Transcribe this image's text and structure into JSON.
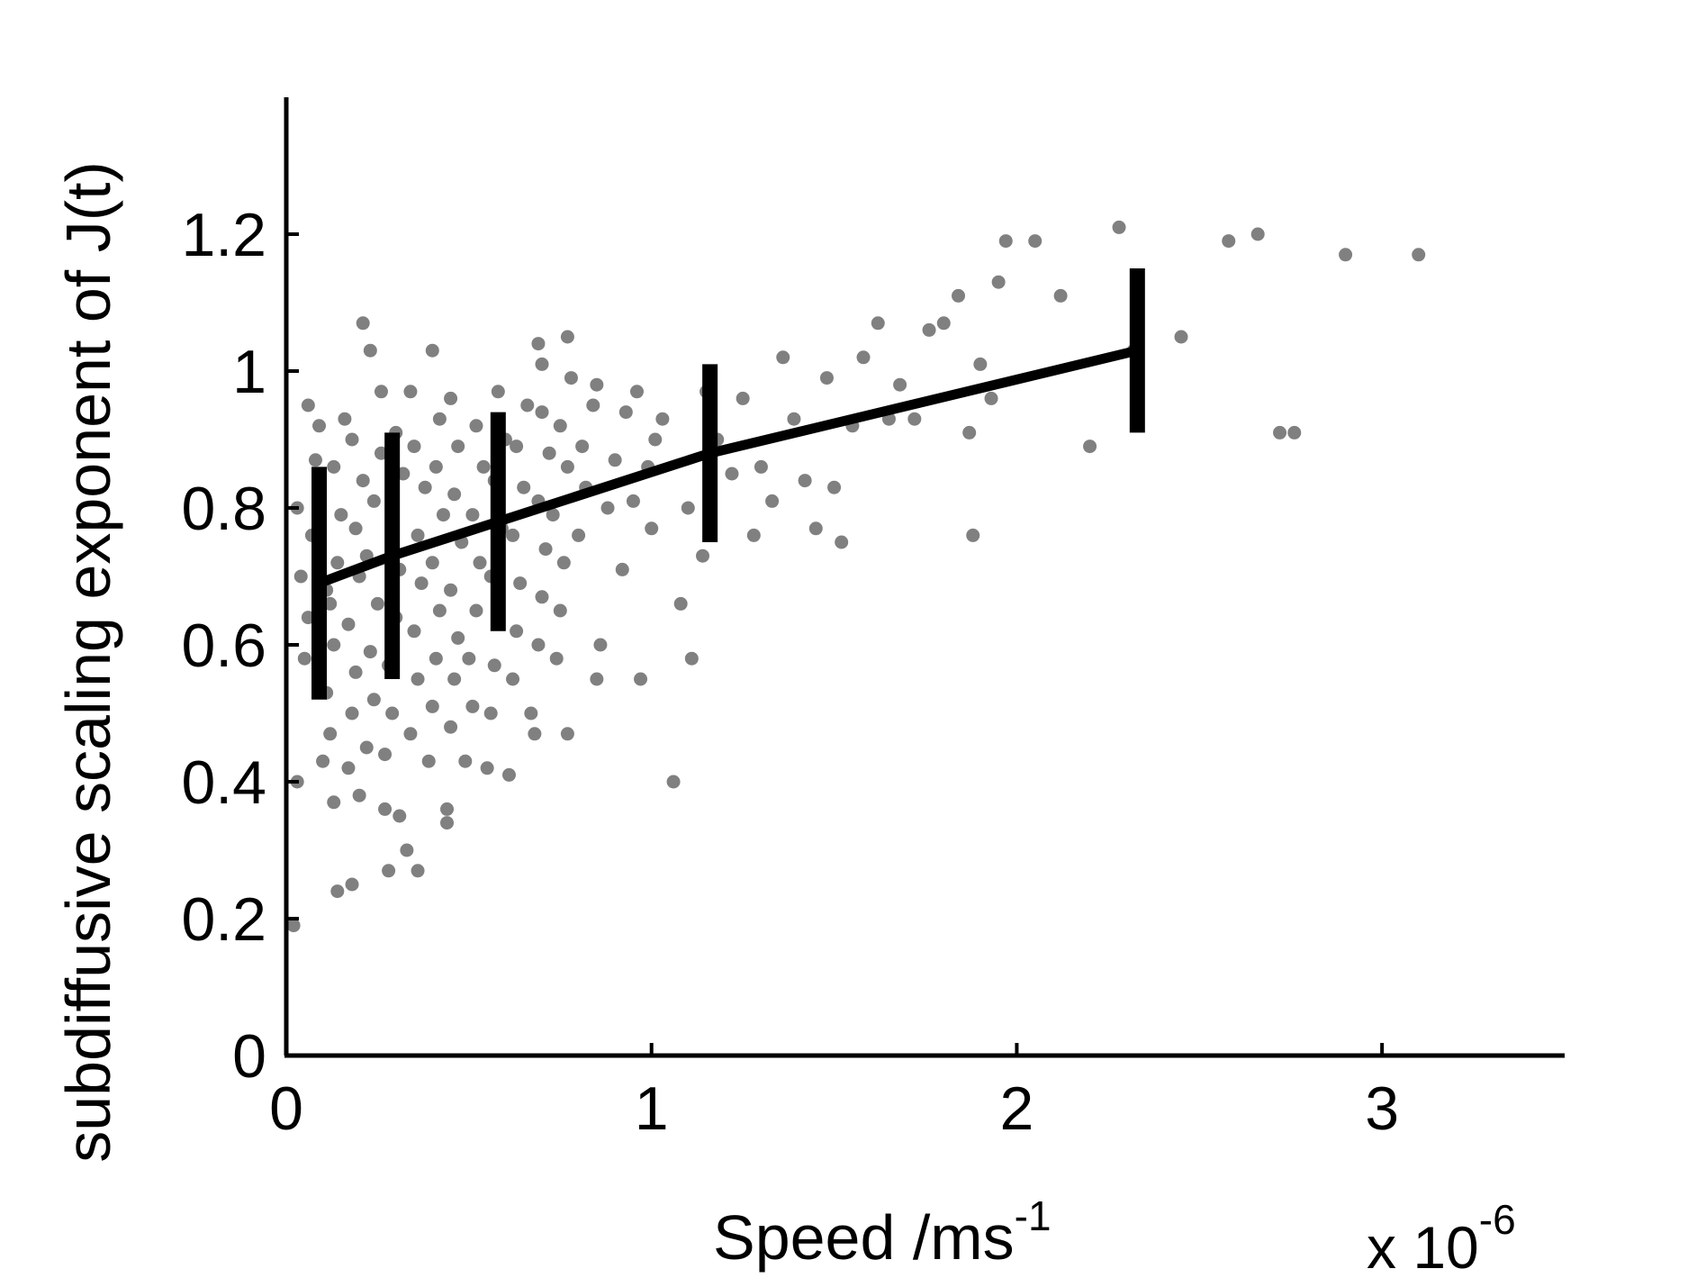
{
  "chart_data": {
    "type": "scatter",
    "xlabel": "Speed /ms",
    "xlabel_superscript": "-1",
    "x_multiplier": "x 10",
    "x_multiplier_superscript": "-6",
    "ylabel": "subdiffusive scaling exponent of J(t)",
    "xlim": [
      0,
      3.5
    ],
    "ylim": [
      0,
      1.4
    ],
    "xticks": [
      0,
      1,
      2,
      3
    ],
    "xtick_labels": [
      "0",
      "1",
      "2",
      "3"
    ],
    "yticks": [
      0,
      0.2,
      0.4,
      0.6,
      0.8,
      1,
      1.2
    ],
    "ytick_labels": [
      "0",
      "0.2",
      "0.4",
      "0.6",
      "0.8",
      "1",
      "1.2"
    ],
    "grid": false,
    "colors": {
      "points": "#808080",
      "fit": "#000000"
    },
    "series": [
      {
        "kind": "scatter",
        "points": [
          [
            0.02,
            0.19
          ],
          [
            0.03,
            0.4
          ],
          [
            0.05,
            0.58
          ],
          [
            0.06,
            0.64
          ],
          [
            0.04,
            0.7
          ],
          [
            0.07,
            0.76
          ],
          [
            0.03,
            0.8
          ],
          [
            0.08,
            0.87
          ],
          [
            0.06,
            0.95
          ],
          [
            0.09,
            0.92
          ],
          [
            0.1,
            0.43
          ],
          [
            0.12,
            0.47
          ],
          [
            0.11,
            0.53
          ],
          [
            0.13,
            0.6
          ],
          [
            0.12,
            0.66
          ],
          [
            0.14,
            0.72
          ],
          [
            0.15,
            0.79
          ],
          [
            0.13,
            0.86
          ],
          [
            0.16,
            0.93
          ],
          [
            0.11,
            0.68
          ],
          [
            0.13,
            0.37
          ],
          [
            0.14,
            0.24
          ],
          [
            0.17,
            0.42
          ],
          [
            0.18,
            0.5
          ],
          [
            0.19,
            0.56
          ],
          [
            0.17,
            0.63
          ],
          [
            0.2,
            0.7
          ],
          [
            0.19,
            0.77
          ],
          [
            0.21,
            0.84
          ],
          [
            0.18,
            0.9
          ],
          [
            0.18,
            0.25
          ],
          [
            0.2,
            0.38
          ],
          [
            0.22,
            0.45
          ],
          [
            0.24,
            0.52
          ],
          [
            0.23,
            0.59
          ],
          [
            0.25,
            0.66
          ],
          [
            0.22,
            0.73
          ],
          [
            0.24,
            0.81
          ],
          [
            0.26,
            0.88
          ],
          [
            0.21,
            1.07
          ],
          [
            0.23,
            1.03
          ],
          [
            0.26,
            0.97
          ],
          [
            0.27,
            0.44
          ],
          [
            0.29,
            0.5
          ],
          [
            0.28,
            0.57
          ],
          [
            0.3,
            0.64
          ],
          [
            0.31,
            0.71
          ],
          [
            0.29,
            0.78
          ],
          [
            0.32,
            0.85
          ],
          [
            0.3,
            0.91
          ],
          [
            0.28,
            0.27
          ],
          [
            0.27,
            0.36
          ],
          [
            0.33,
            0.3
          ],
          [
            0.31,
            0.35
          ],
          [
            0.34,
            0.47
          ],
          [
            0.36,
            0.55
          ],
          [
            0.35,
            0.62
          ],
          [
            0.37,
            0.69
          ],
          [
            0.36,
            0.76
          ],
          [
            0.38,
            0.83
          ],
          [
            0.34,
            0.97
          ],
          [
            0.35,
            0.89
          ],
          [
            0.36,
            0.27
          ],
          [
            0.39,
            0.43
          ],
          [
            0.4,
            0.51
          ],
          [
            0.41,
            0.58
          ],
          [
            0.42,
            0.65
          ],
          [
            0.4,
            0.72
          ],
          [
            0.43,
            0.79
          ],
          [
            0.41,
            0.86
          ],
          [
            0.4,
            1.03
          ],
          [
            0.42,
            0.93
          ],
          [
            0.44,
            0.34
          ],
          [
            0.44,
            0.36
          ],
          [
            0.45,
            0.48
          ],
          [
            0.46,
            0.55
          ],
          [
            0.47,
            0.61
          ],
          [
            0.45,
            0.68
          ],
          [
            0.48,
            0.75
          ],
          [
            0.46,
            0.82
          ],
          [
            0.47,
            0.89
          ],
          [
            0.45,
            0.96
          ],
          [
            0.49,
            0.43
          ],
          [
            0.51,
            0.51
          ],
          [
            0.5,
            0.58
          ],
          [
            0.52,
            0.65
          ],
          [
            0.53,
            0.72
          ],
          [
            0.51,
            0.79
          ],
          [
            0.54,
            0.86
          ],
          [
            0.52,
            0.92
          ],
          [
            0.55,
            0.42
          ],
          [
            0.56,
            0.5
          ],
          [
            0.57,
            0.57
          ],
          [
            0.58,
            0.64
          ],
          [
            0.56,
            0.7
          ],
          [
            0.59,
            0.77
          ],
          [
            0.57,
            0.84
          ],
          [
            0.6,
            0.9
          ],
          [
            0.58,
            0.97
          ],
          [
            0.61,
            0.41
          ],
          [
            0.62,
            0.55
          ],
          [
            0.63,
            0.62
          ],
          [
            0.64,
            0.69
          ],
          [
            0.62,
            0.76
          ],
          [
            0.65,
            0.83
          ],
          [
            0.63,
            0.89
          ],
          [
            0.66,
            0.95
          ],
          [
            0.68,
            0.47
          ],
          [
            0.67,
            0.5
          ],
          [
            0.69,
            0.6
          ],
          [
            0.7,
            0.67
          ],
          [
            0.71,
            0.74
          ],
          [
            0.69,
            0.81
          ],
          [
            0.72,
            0.88
          ],
          [
            0.7,
            0.94
          ],
          [
            0.69,
            1.04
          ],
          [
            0.7,
            1.01
          ],
          [
            0.74,
            0.58
          ],
          [
            0.75,
            0.65
          ],
          [
            0.76,
            0.72
          ],
          [
            0.73,
            0.79
          ],
          [
            0.77,
            0.86
          ],
          [
            0.75,
            0.92
          ],
          [
            0.78,
            0.99
          ],
          [
            0.77,
            1.05
          ],
          [
            0.77,
            0.47
          ],
          [
            0.8,
            0.76
          ],
          [
            0.82,
            0.83
          ],
          [
            0.81,
            0.89
          ],
          [
            0.84,
            0.95
          ],
          [
            0.85,
            0.55
          ],
          [
            0.86,
            0.6
          ],
          [
            0.88,
            0.8
          ],
          [
            0.9,
            0.87
          ],
          [
            0.92,
            0.71
          ],
          [
            0.93,
            0.94
          ],
          [
            0.95,
            0.81
          ],
          [
            0.96,
            0.97
          ],
          [
            0.97,
            0.55
          ],
          [
            0.99,
            0.86
          ],
          [
            1.01,
            0.9
          ],
          [
            1.03,
            0.93
          ],
          [
            1.06,
            0.4
          ],
          [
            1.08,
            0.66
          ],
          [
            1.1,
            0.8
          ],
          [
            1.11,
            0.58
          ],
          [
            1.14,
            0.73
          ],
          [
            1.15,
            0.97
          ],
          [
            1.18,
            0.9
          ],
          [
            1.22,
            0.85
          ],
          [
            1.25,
            0.96
          ],
          [
            1.28,
            0.76
          ],
          [
            1.3,
            0.86
          ],
          [
            1.33,
            0.81
          ],
          [
            1.36,
            1.02
          ],
          [
            1.39,
            0.93
          ],
          [
            1.42,
            0.84
          ],
          [
            1.45,
            0.77
          ],
          [
            1.48,
            0.99
          ],
          [
            1.5,
            0.83
          ],
          [
            1.52,
            0.75
          ],
          [
            1.55,
            0.92
          ],
          [
            1.58,
            1.02
          ],
          [
            1.62,
            1.07
          ],
          [
            1.65,
            0.93
          ],
          [
            1.68,
            0.98
          ],
          [
            1.72,
            0.93
          ],
          [
            1.76,
            1.06
          ],
          [
            1.8,
            1.07
          ],
          [
            1.84,
            1.11
          ],
          [
            1.87,
            0.91
          ],
          [
            1.88,
            0.76
          ],
          [
            1.9,
            1.01
          ],
          [
            1.93,
            0.96
          ],
          [
            1.95,
            1.13
          ],
          [
            1.97,
            1.19
          ],
          [
            2.05,
            1.19
          ],
          [
            2.12,
            1.11
          ],
          [
            2.2,
            0.89
          ],
          [
            2.28,
            1.21
          ],
          [
            2.32,
            1.03
          ],
          [
            2.45,
            1.05
          ],
          [
            2.58,
            1.19
          ],
          [
            2.66,
            1.2
          ],
          [
            2.72,
            0.91
          ],
          [
            2.76,
            0.91
          ],
          [
            2.9,
            1.17
          ],
          [
            3.1,
            1.17
          ],
          [
            0.85,
            0.98
          ],
          [
            1.0,
            0.77
          ]
        ]
      },
      {
        "kind": "line-with-errorbars",
        "points": [
          {
            "x": 0.09,
            "y": 0.69,
            "err": 0.17
          },
          {
            "x": 0.29,
            "y": 0.73,
            "err": 0.18
          },
          {
            "x": 0.58,
            "y": 0.78,
            "err": 0.16
          },
          {
            "x": 1.16,
            "y": 0.88,
            "err": 0.13
          },
          {
            "x": 2.33,
            "y": 1.03,
            "err": 0.12
          }
        ]
      }
    ]
  }
}
